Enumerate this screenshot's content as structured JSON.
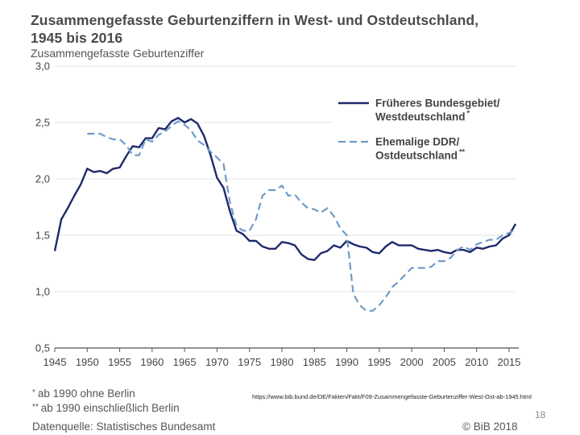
{
  "header": {
    "title_line1": "Zusammengefasste Geburtenziffern in West- und Ostdeutschland,",
    "title_line2": "1945 bis 2016",
    "subtitle": "Zusammengefasste Geburtenziffer"
  },
  "footnotes": [
    {
      "mark": "*",
      "text": "ab 1990 ohne Berlin"
    },
    {
      "mark": "**",
      "text": "ab 1990 einschließlich Berlin"
    }
  ],
  "source_url": "https://www.bib.bund.de/DE/Fakten/Fakt/F09-Zusammengefasste-Geburtenziffer-West-Ost-ab-1945.html",
  "datasource": "Datenquelle: Statistisches Bundesamt",
  "copyright": "© BiB 2018",
  "slide_number": "18",
  "colors": {
    "west": "#1f2a6b",
    "east": "#6f9bc7",
    "axis": "#555555",
    "grid": "#e3e3e3"
  },
  "chart_data": {
    "type": "line",
    "title": "Zusammengefasste Geburtenziffern in West- und Ostdeutschland, 1945 bis 2016",
    "ylabel": "Zusammengefasste Geburtenziffer",
    "xlabel": "",
    "xlim": [
      1945,
      2016
    ],
    "ylim": [
      0.5,
      3.0
    ],
    "x_ticks": [
      "1945",
      "1950",
      "1955",
      "1960",
      "1965",
      "1970",
      "1975",
      "1980",
      "1985",
      "1990",
      "1995",
      "2000",
      "2005",
      "2010",
      "2015"
    ],
    "y_ticks": [
      "3,0",
      "2,5",
      "2,0",
      "1,5",
      "1,0",
      "0,5"
    ],
    "grid": "horizontal",
    "legend_position": "top-right",
    "series": [
      {
        "name": "Früheres Bundesgebiet/ Westdeutschland*",
        "legend_line1": "Früheres Bundesgebiet/",
        "legend_line2": "Westdeutschland",
        "legend_mark": "*",
        "style": "solid",
        "x": [
          1945,
          1946,
          1947,
          1948,
          1949,
          1950,
          1951,
          1952,
          1953,
          1954,
          1955,
          1956,
          1957,
          1958,
          1959,
          1960,
          1961,
          1962,
          1963,
          1964,
          1965,
          1966,
          1967,
          1968,
          1969,
          1970,
          1971,
          1972,
          1973,
          1974,
          1975,
          1976,
          1977,
          1978,
          1979,
          1980,
          1981,
          1982,
          1983,
          1984,
          1985,
          1986,
          1987,
          1988,
          1989,
          1990,
          1991,
          1992,
          1993,
          1994,
          1995,
          1996,
          1997,
          1998,
          1999,
          2000,
          2001,
          2002,
          2003,
          2004,
          2005,
          2006,
          2007,
          2008,
          2009,
          2010,
          2011,
          2012,
          2013,
          2014,
          2015,
          2016
        ],
        "y": [
          1.36,
          1.64,
          1.74,
          1.85,
          1.95,
          2.09,
          2.06,
          2.07,
          2.05,
          2.09,
          2.1,
          2.2,
          2.29,
          2.28,
          2.36,
          2.36,
          2.45,
          2.44,
          2.51,
          2.54,
          2.5,
          2.53,
          2.49,
          2.38,
          2.21,
          2.01,
          1.92,
          1.71,
          1.54,
          1.51,
          1.45,
          1.45,
          1.4,
          1.38,
          1.38,
          1.44,
          1.43,
          1.41,
          1.33,
          1.29,
          1.28,
          1.34,
          1.36,
          1.41,
          1.39,
          1.45,
          1.42,
          1.4,
          1.39,
          1.35,
          1.34,
          1.4,
          1.44,
          1.41,
          1.41,
          1.41,
          1.38,
          1.37,
          1.36,
          1.37,
          1.35,
          1.34,
          1.37,
          1.37,
          1.35,
          1.39,
          1.38,
          1.4,
          1.41,
          1.47,
          1.5,
          1.6
        ]
      },
      {
        "name": "Ehemalige DDR/ Ostdeutschland**",
        "legend_line1": "Ehemalige DDR/",
        "legend_line2": "Ostdeutschland",
        "legend_mark": "**",
        "style": "dashed",
        "x": [
          1950,
          1951,
          1952,
          1953,
          1954,
          1955,
          1956,
          1957,
          1958,
          1959,
          1960,
          1961,
          1962,
          1963,
          1964,
          1965,
          1966,
          1967,
          1968,
          1969,
          1970,
          1971,
          1972,
          1973,
          1974,
          1975,
          1976,
          1977,
          1978,
          1979,
          1980,
          1981,
          1982,
          1983,
          1984,
          1985,
          1986,
          1987,
          1988,
          1989,
          1990,
          1991,
          1992,
          1993,
          1994,
          1995,
          1996,
          1997,
          1998,
          1999,
          2000,
          2001,
          2002,
          2003,
          2004,
          2005,
          2006,
          2007,
          2008,
          2009,
          2010,
          2011,
          2012,
          2013,
          2014,
          2015,
          2016
        ],
        "y": [
          2.4,
          2.4,
          2.4,
          2.37,
          2.35,
          2.35,
          2.3,
          2.21,
          2.21,
          2.35,
          2.33,
          2.39,
          2.42,
          2.47,
          2.51,
          2.48,
          2.43,
          2.34,
          2.3,
          2.24,
          2.19,
          2.13,
          1.79,
          1.58,
          1.54,
          1.54,
          1.64,
          1.85,
          1.9,
          1.9,
          1.94,
          1.85,
          1.86,
          1.79,
          1.74,
          1.73,
          1.7,
          1.74,
          1.67,
          1.56,
          1.5,
          0.98,
          0.88,
          0.83,
          0.83,
          0.88,
          0.95,
          1.04,
          1.09,
          1.15,
          1.21,
          1.21,
          1.21,
          1.22,
          1.27,
          1.27,
          1.3,
          1.37,
          1.4,
          1.37,
          1.42,
          1.44,
          1.46,
          1.46,
          1.5,
          1.52,
          1.55
        ]
      }
    ]
  }
}
